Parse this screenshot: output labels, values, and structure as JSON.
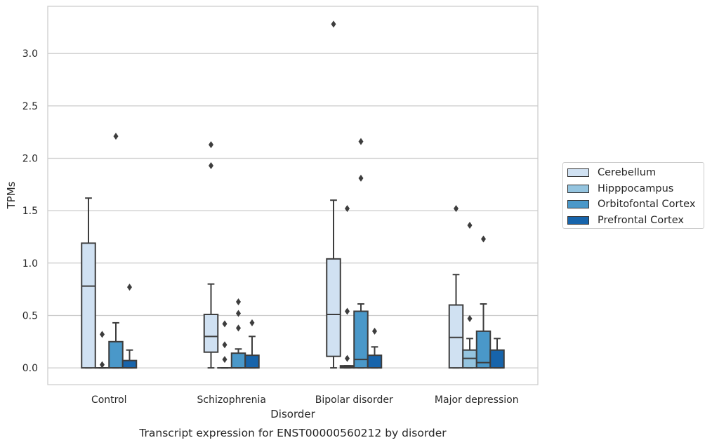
{
  "chart_data": {
    "type": "box",
    "title": "Transcript expression for ENST00000560212 by disorder",
    "xlabel": "Disorder",
    "ylabel": "TPMs",
    "ylim": [
      -0.16,
      3.45
    ],
    "yticks": [
      "0.0",
      "0.5",
      "1.0",
      "1.5",
      "2.0",
      "2.5",
      "3.0"
    ],
    "categories": [
      "Control",
      "Schizophrenia",
      "Bipolar disorder",
      "Major depression"
    ],
    "grid": "horizontal",
    "legend_position": "right",
    "series": [
      {
        "name": "Cerebellum",
        "color": "#d0e1f2",
        "boxes": [
          {
            "whislo": 0.0,
            "q1": 0.0,
            "med": 0.78,
            "q3": 1.19,
            "whishi": 1.62,
            "fliers": []
          },
          {
            "whislo": 0.0,
            "q1": 0.15,
            "med": 0.3,
            "q3": 0.51,
            "whishi": 0.8,
            "fliers": [
              1.93,
              2.13
            ]
          },
          {
            "whislo": 0.0,
            "q1": 0.11,
            "med": 0.51,
            "q3": 1.04,
            "whishi": 1.6,
            "fliers": [
              3.28
            ]
          },
          {
            "whislo": 0.0,
            "q1": 0.0,
            "med": 0.29,
            "q3": 0.6,
            "whishi": 0.89,
            "fliers": [
              1.52
            ]
          }
        ]
      },
      {
        "name": "Hipppocampus",
        "color": "#94c4df",
        "boxes": [
          {
            "whislo": 0.0,
            "q1": 0.0,
            "med": 0.0,
            "q3": 0.0,
            "whishi": 0.0,
            "fliers": [
              0.03,
              0.32
            ]
          },
          {
            "whislo": 0.0,
            "q1": 0.0,
            "med": 0.0,
            "q3": 0.0,
            "whishi": 0.0,
            "fliers": [
              0.08,
              0.22,
              0.42
            ]
          },
          {
            "whislo": 0.0,
            "q1": 0.0,
            "med": 0.01,
            "q3": 0.02,
            "whishi": 0.02,
            "fliers": [
              0.09,
              0.54,
              1.52
            ]
          },
          {
            "whislo": 0.0,
            "q1": 0.0,
            "med": 0.09,
            "q3": 0.17,
            "whishi": 0.28,
            "fliers": [
              0.47,
              1.36
            ]
          }
        ]
      },
      {
        "name": "Orbitofontal Cortex",
        "color": "#4a98c9",
        "boxes": [
          {
            "whislo": 0.0,
            "q1": 0.0,
            "med": 0.0,
            "q3": 0.25,
            "whishi": 0.43,
            "fliers": [
              2.21
            ]
          },
          {
            "whislo": 0.0,
            "q1": 0.0,
            "med": 0.0,
            "q3": 0.14,
            "whishi": 0.18,
            "fliers": [
              0.38,
              0.52,
              0.63
            ]
          },
          {
            "whislo": 0.0,
            "q1": 0.0,
            "med": 0.08,
            "q3": 0.54,
            "whishi": 0.61,
            "fliers": [
              1.81,
              2.16
            ]
          },
          {
            "whislo": 0.0,
            "q1": 0.0,
            "med": 0.05,
            "q3": 0.35,
            "whishi": 0.61,
            "fliers": [
              1.23
            ]
          }
        ]
      },
      {
        "name": "Prefrontal Cortex",
        "color": "#1764ab",
        "boxes": [
          {
            "whislo": 0.0,
            "q1": 0.0,
            "med": 0.0,
            "q3": 0.07,
            "whishi": 0.17,
            "fliers": [
              0.77
            ]
          },
          {
            "whislo": 0.0,
            "q1": 0.0,
            "med": 0.0,
            "q3": 0.12,
            "whishi": 0.3,
            "fliers": [
              0.43
            ]
          },
          {
            "whislo": 0.0,
            "q1": 0.0,
            "med": 0.0,
            "q3": 0.12,
            "whishi": 0.2,
            "fliers": [
              0.35
            ]
          },
          {
            "whislo": 0.0,
            "q1": 0.0,
            "med": 0.0,
            "q3": 0.17,
            "whishi": 0.28,
            "fliers": []
          }
        ]
      }
    ]
  }
}
